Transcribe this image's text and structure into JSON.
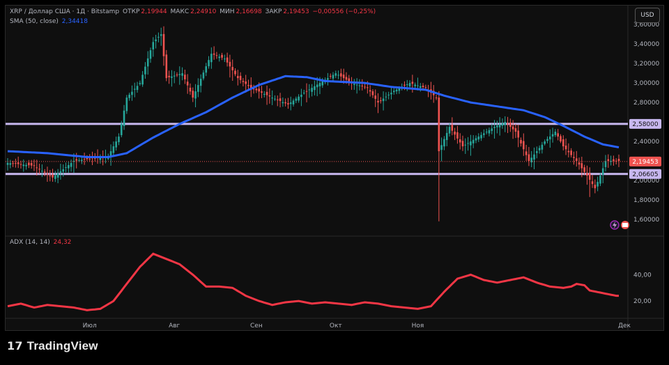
{
  "header": {
    "symbol": "XRP / Доллар США · 1Д · Bitstamp",
    "open_label": "ОТКР",
    "open_value": "2,19944",
    "high_label": "МАКС",
    "high_value": "2,24910",
    "low_label": "МИН",
    "low_value": "2,16698",
    "close_label": "ЗАКР",
    "close_value": "2,19453",
    "change": "−0,00556 (−0,25%)",
    "sma_label": "SMA (50, close)",
    "sma_value": "2,34418",
    "currency": "USD"
  },
  "adx": {
    "label": "ADX (14, 14)",
    "value": "24,32"
  },
  "brand": {
    "name": "TradingView"
  },
  "colors": {
    "up": "#26a69a",
    "down": "#ef5350",
    "sma": "#2962ff",
    "adx": "#f23645",
    "level": "#c8b8f0"
  },
  "chart_data": [
    {
      "type": "candlestick",
      "name": "price",
      "x_labels": [
        "Июл",
        "Авг",
        "Сен",
        "Окт",
        "Ноя",
        "Дек"
      ],
      "y_ticks": [
        1.6,
        1.8,
        2.0,
        2.2,
        2.4,
        2.6,
        2.8,
        3.0,
        3.2,
        3.4,
        3.6
      ],
      "y_tick_labels": [
        "1,60000",
        "1,80000",
        "2,00000",
        "2,20000",
        "2,40000",
        "2,60000",
        "2,80000",
        "3,00000",
        "3,20000",
        "3,40000",
        "3,60000"
      ],
      "ylim": [
        1.45,
        3.78
      ],
      "price_levels": [
        {
          "value": 2.58,
          "label": "2,58000"
        },
        {
          "value": 2.06605,
          "label": "2,06605"
        }
      ],
      "last_price": {
        "value": 2.19453,
        "label": "2,19453"
      },
      "close_anchors": [
        [
          0,
          2.18
        ],
        [
          10,
          2.15
        ],
        [
          17,
          2.03
        ],
        [
          25,
          2.2
        ],
        [
          38,
          2.25
        ],
        [
          42,
          2.45
        ],
        [
          45,
          2.85
        ],
        [
          50,
          3.0
        ],
        [
          55,
          3.42
        ],
        [
          58,
          3.5
        ],
        [
          60,
          3.05
        ],
        [
          66,
          3.1
        ],
        [
          70,
          2.85
        ],
        [
          77,
          3.3
        ],
        [
          82,
          3.25
        ],
        [
          87,
          3.05
        ],
        [
          92,
          2.95
        ],
        [
          100,
          2.85
        ],
        [
          106,
          2.78
        ],
        [
          112,
          2.9
        ],
        [
          118,
          3.0
        ],
        [
          124,
          3.1
        ],
        [
          130,
          3.0
        ],
        [
          136,
          2.95
        ],
        [
          140,
          2.8
        ],
        [
          146,
          2.92
        ],
        [
          152,
          3.0
        ],
        [
          158,
          2.95
        ],
        [
          162,
          2.85
        ],
        [
          163,
          2.3
        ],
        [
          167,
          2.55
        ],
        [
          172,
          2.35
        ],
        [
          178,
          2.45
        ],
        [
          184,
          2.55
        ],
        [
          188,
          2.6
        ],
        [
          192,
          2.5
        ],
        [
          197,
          2.2
        ],
        [
          203,
          2.4
        ],
        [
          207,
          2.5
        ],
        [
          210,
          2.35
        ],
        [
          215,
          2.2
        ],
        [
          219,
          2.05
        ],
        [
          222,
          1.92
        ],
        [
          224,
          2.05
        ],
        [
          226,
          2.2
        ],
        [
          231,
          2.2
        ]
      ],
      "sma_anchors": [
        [
          0,
          2.3
        ],
        [
          15,
          2.28
        ],
        [
          30,
          2.24
        ],
        [
          38,
          2.24
        ],
        [
          45,
          2.28
        ],
        [
          55,
          2.44
        ],
        [
          65,
          2.58
        ],
        [
          75,
          2.7
        ],
        [
          85,
          2.85
        ],
        [
          95,
          2.98
        ],
        [
          105,
          3.07
        ],
        [
          113,
          3.06
        ],
        [
          120,
          3.02
        ],
        [
          135,
          3.0
        ],
        [
          145,
          2.96
        ],
        [
          158,
          2.93
        ],
        [
          165,
          2.87
        ],
        [
          175,
          2.8
        ],
        [
          185,
          2.76
        ],
        [
          195,
          2.72
        ],
        [
          203,
          2.65
        ],
        [
          210,
          2.56
        ],
        [
          218,
          2.45
        ],
        [
          225,
          2.37
        ],
        [
          231,
          2.34
        ]
      ],
      "events": [
        {
          "index": 163,
          "low": 1.58
        },
        {
          "index": 220,
          "low": 1.83
        }
      ]
    },
    {
      "type": "line",
      "name": "ADX",
      "y_ticks": [
        20,
        40
      ],
      "y_tick_labels": [
        "20,00",
        "40,00"
      ],
      "ylim": [
        2,
        62
      ],
      "anchors": [
        [
          0,
          16
        ],
        [
          5,
          18
        ],
        [
          10,
          15
        ],
        [
          15,
          17
        ],
        [
          20,
          16
        ],
        [
          25,
          15
        ],
        [
          30,
          13
        ],
        [
          35,
          14
        ],
        [
          40,
          20
        ],
        [
          45,
          33
        ],
        [
          50,
          46
        ],
        [
          55,
          56
        ],
        [
          60,
          52
        ],
        [
          65,
          48
        ],
        [
          70,
          40
        ],
        [
          75,
          31
        ],
        [
          80,
          31
        ],
        [
          85,
          30
        ],
        [
          90,
          24
        ],
        [
          95,
          20
        ],
        [
          100,
          17
        ],
        [
          105,
          19
        ],
        [
          110,
          20
        ],
        [
          115,
          18
        ],
        [
          120,
          19
        ],
        [
          125,
          18
        ],
        [
          130,
          17
        ],
        [
          135,
          19
        ],
        [
          140,
          18
        ],
        [
          145,
          16
        ],
        [
          150,
          15
        ],
        [
          155,
          14
        ],
        [
          160,
          16
        ],
        [
          165,
          27
        ],
        [
          170,
          37
        ],
        [
          175,
          40
        ],
        [
          180,
          36
        ],
        [
          185,
          34
        ],
        [
          190,
          36
        ],
        [
          195,
          38
        ],
        [
          200,
          34
        ],
        [
          205,
          31
        ],
        [
          210,
          30
        ],
        [
          213,
          31
        ],
        [
          215,
          33
        ],
        [
          218,
          32
        ],
        [
          220,
          28
        ],
        [
          225,
          26
        ],
        [
          230,
          24
        ]
      ]
    }
  ]
}
